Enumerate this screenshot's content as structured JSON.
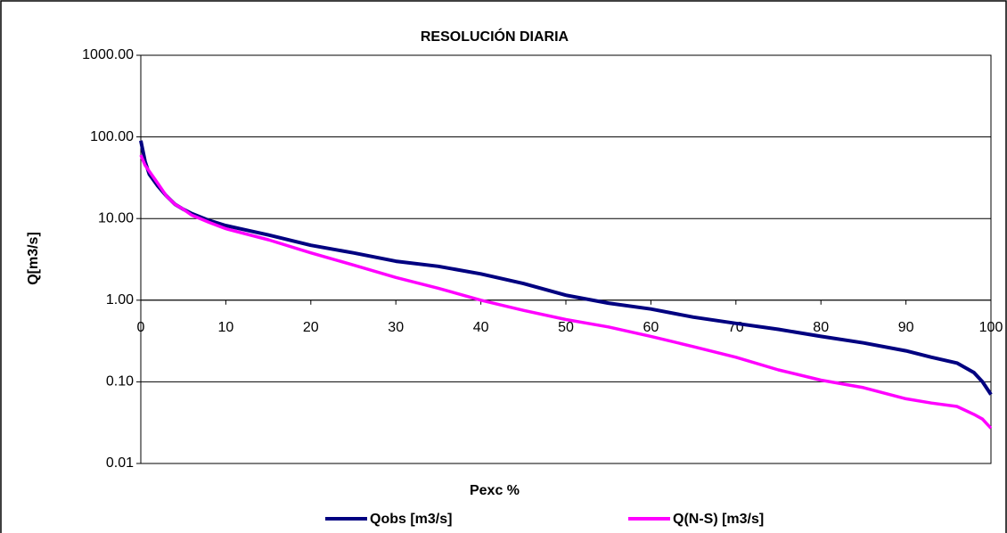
{
  "chart_data": {
    "type": "line",
    "title": "RESOLUCIÓN DIARIA",
    "x_label": "Pexc %",
    "y_label": "Q[m3/s]",
    "log_y": true,
    "grid": true,
    "legend": "bottom",
    "x": [
      0,
      0.5,
      1,
      2,
      3,
      4,
      5,
      6,
      8,
      10,
      15,
      20,
      25,
      30,
      35,
      40,
      45,
      50,
      55,
      60,
      65,
      70,
      75,
      80,
      85,
      90,
      93,
      96,
      98,
      99,
      100
    ],
    "series": [
      {
        "name": "Qobs [m3/s]",
        "color": "#000080",
        "values": [
          90,
          50,
          35,
          25,
          19,
          15,
          13,
          11.5,
          9.5,
          8.2,
          6.3,
          4.7,
          3.8,
          3.0,
          2.6,
          2.1,
          1.6,
          1.15,
          0.92,
          0.78,
          0.62,
          0.52,
          0.44,
          0.36,
          0.3,
          0.24,
          0.2,
          0.17,
          0.13,
          0.1,
          0.07
        ]
      },
      {
        "name": "Q(N-S) [m3/s]",
        "color": "#ff00ff",
        "values": [
          60,
          45,
          38,
          27,
          19,
          15,
          13,
          11,
          9,
          7.5,
          5.5,
          3.8,
          2.7,
          1.9,
          1.4,
          1.0,
          0.75,
          0.58,
          0.47,
          0.36,
          0.27,
          0.2,
          0.14,
          0.105,
          0.085,
          0.062,
          0.055,
          0.05,
          0.04,
          0.035,
          0.027
        ]
      }
    ],
    "xlim": [
      0,
      100
    ],
    "xticks": [
      0,
      10,
      20,
      30,
      40,
      50,
      60,
      70,
      80,
      90,
      100
    ],
    "ylim": [
      0.01,
      1000
    ],
    "yticks": [
      {
        "value": 0.01,
        "label": "0.01"
      },
      {
        "value": 0.1,
        "label": "0.10"
      },
      {
        "value": 1,
        "label": "1.00"
      },
      {
        "value": 10,
        "label": "10.00"
      },
      {
        "value": 100,
        "label": "100.00"
      },
      {
        "value": 1000,
        "label": "1000.00"
      }
    ]
  }
}
